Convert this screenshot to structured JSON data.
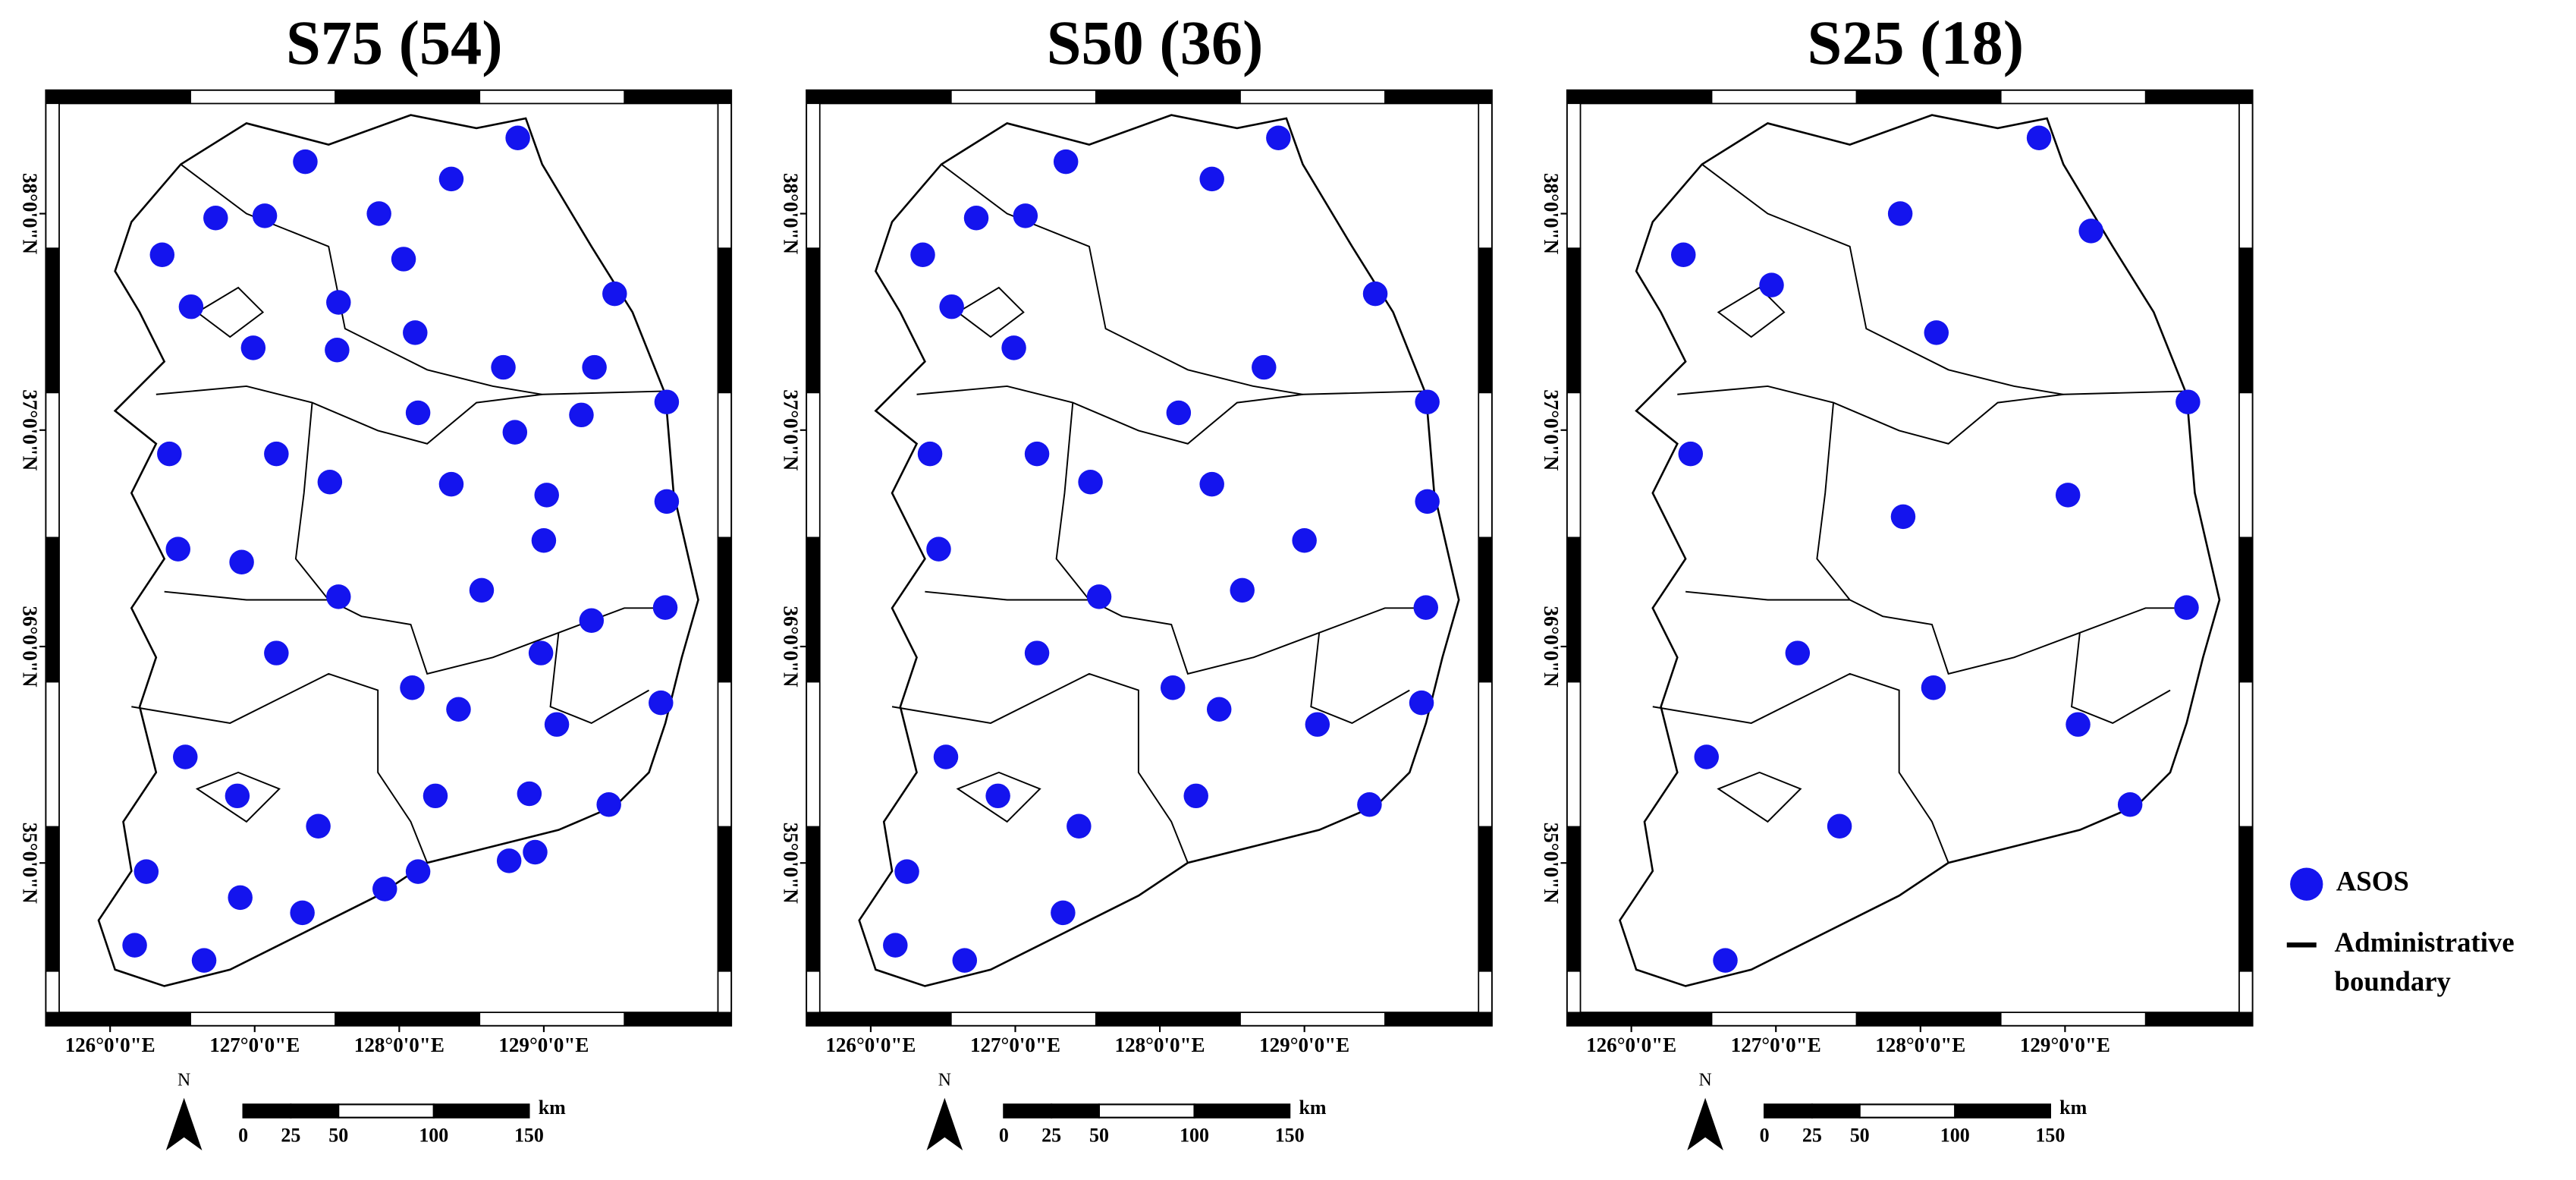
{
  "panels": [
    {
      "title": "S75 (54)",
      "stations": [
        [
          128.82,
          38.35
        ],
        [
          127.35,
          38.24
        ],
        [
          128.36,
          38.16
        ],
        [
          126.73,
          37.98
        ],
        [
          127.07,
          37.99
        ],
        [
          127.86,
          38.0
        ],
        [
          126.36,
          37.81
        ],
        [
          128.03,
          37.79
        ],
        [
          126.56,
          37.57
        ],
        [
          127.58,
          37.59
        ],
        [
          129.49,
          37.63
        ],
        [
          126.99,
          37.38
        ],
        [
          127.57,
          37.37
        ],
        [
          128.11,
          37.45
        ],
        [
          128.72,
          37.29
        ],
        [
          129.35,
          37.29
        ],
        [
          129.85,
          37.13
        ],
        [
          128.13,
          37.08
        ],
        [
          128.8,
          36.99
        ],
        [
          129.26,
          37.07
        ],
        [
          126.41,
          36.89
        ],
        [
          127.15,
          36.89
        ],
        [
          127.52,
          36.76
        ],
        [
          128.36,
          36.75
        ],
        [
          129.02,
          36.7
        ],
        [
          129.85,
          36.67
        ],
        [
          126.47,
          36.45
        ],
        [
          129.0,
          36.49
        ],
        [
          126.91,
          36.39
        ],
        [
          127.58,
          36.23
        ],
        [
          128.57,
          36.26
        ],
        [
          129.84,
          36.18
        ],
        [
          129.33,
          36.12
        ],
        [
          127.15,
          35.97
        ],
        [
          128.98,
          35.97
        ],
        [
          128.09,
          35.81
        ],
        [
          128.41,
          35.71
        ],
        [
          129.81,
          35.74
        ],
        [
          129.09,
          35.64
        ],
        [
          126.52,
          35.49
        ],
        [
          126.88,
          35.31
        ],
        [
          128.25,
          35.31
        ],
        [
          128.9,
          35.32
        ],
        [
          129.45,
          35.27
        ],
        [
          127.44,
          35.17
        ],
        [
          126.25,
          34.96
        ],
        [
          128.13,
          34.96
        ],
        [
          127.9,
          34.88
        ],
        [
          128.76,
          35.01
        ],
        [
          128.94,
          35.05
        ],
        [
          126.9,
          34.84
        ],
        [
          127.33,
          34.77
        ],
        [
          126.17,
          34.62
        ],
        [
          126.65,
          34.55
        ]
      ]
    },
    {
      "title": "S50 (36)",
      "stations": [
        [
          128.82,
          38.35
        ],
        [
          127.35,
          38.24
        ],
        [
          128.36,
          38.16
        ],
        [
          126.73,
          37.98
        ],
        [
          127.07,
          37.99
        ],
        [
          126.36,
          37.81
        ],
        [
          129.49,
          37.63
        ],
        [
          126.56,
          37.57
        ],
        [
          126.99,
          37.38
        ],
        [
          128.72,
          37.29
        ],
        [
          129.85,
          37.13
        ],
        [
          128.13,
          37.08
        ],
        [
          126.41,
          36.89
        ],
        [
          127.15,
          36.89
        ],
        [
          127.52,
          36.76
        ],
        [
          128.36,
          36.75
        ],
        [
          129.85,
          36.67
        ],
        [
          126.47,
          36.45
        ],
        [
          129.0,
          36.49
        ],
        [
          127.58,
          36.23
        ],
        [
          128.57,
          36.26
        ],
        [
          129.84,
          36.18
        ],
        [
          127.15,
          35.97
        ],
        [
          128.09,
          35.81
        ],
        [
          128.41,
          35.71
        ],
        [
          129.81,
          35.74
        ],
        [
          129.09,
          35.64
        ],
        [
          126.52,
          35.49
        ],
        [
          126.88,
          35.31
        ],
        [
          128.25,
          35.31
        ],
        [
          129.45,
          35.27
        ],
        [
          127.44,
          35.17
        ],
        [
          126.25,
          34.96
        ],
        [
          127.33,
          34.77
        ],
        [
          126.17,
          34.62
        ],
        [
          126.65,
          34.55
        ]
      ]
    },
    {
      "title": "S25 (18)",
      "stations": [
        [
          128.82,
          38.35
        ],
        [
          127.86,
          38.0
        ],
        [
          129.18,
          37.92
        ],
        [
          126.36,
          37.81
        ],
        [
          126.97,
          37.67
        ],
        [
          128.11,
          37.45
        ],
        [
          129.85,
          37.13
        ],
        [
          126.41,
          36.89
        ],
        [
          129.02,
          36.7
        ],
        [
          127.88,
          36.6
        ],
        [
          129.84,
          36.18
        ],
        [
          127.15,
          35.97
        ],
        [
          128.09,
          35.81
        ],
        [
          129.09,
          35.64
        ],
        [
          126.52,
          35.49
        ],
        [
          129.45,
          35.27
        ],
        [
          127.44,
          35.17
        ],
        [
          126.65,
          34.55
        ]
      ]
    }
  ],
  "lon_ticks": [
    {
      "value": 126,
      "label": "126°0'0\"E"
    },
    {
      "value": 127,
      "label": "127°0'0\"E"
    },
    {
      "value": 128,
      "label": "128°0'0\"E"
    },
    {
      "value": 129,
      "label": "129°0'0\"E"
    }
  ],
  "lat_ticks": [
    {
      "value": 35,
      "label": "35°0'0\"N"
    },
    {
      "value": 36,
      "label": "36°0'0\"N"
    },
    {
      "value": 37,
      "label": "37°0'0\"N"
    },
    {
      "value": 38,
      "label": "38°0'0\"N"
    }
  ],
  "north": "N",
  "scale": {
    "ticks": [
      0,
      25,
      50,
      100,
      150
    ],
    "unit": "km"
  },
  "legend": {
    "station": "ASOS",
    "boundary": [
      "Administrative",
      "boundary"
    ]
  }
}
